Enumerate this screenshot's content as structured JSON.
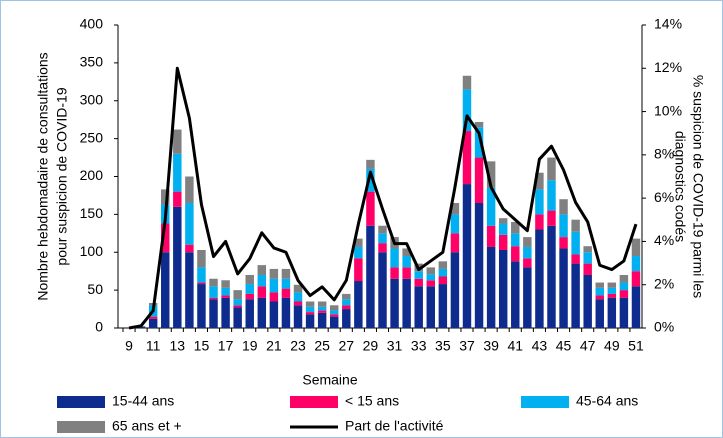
{
  "chart_data": {
    "type": "bar",
    "stacked": true,
    "x_label": "Semaine",
    "y_label": [
      "Nombre  hebdomadaire de consultations",
      "pour suspicion de COVID-19"
    ],
    "y2_label": [
      "% suspicion de COVID-19 parmi les",
      "diagnostics codés"
    ],
    "categories": [
      "9",
      null,
      "11",
      null,
      "13",
      null,
      "15",
      null,
      "17",
      null,
      "19",
      null,
      "21",
      null,
      "23",
      null,
      "25",
      null,
      "27",
      null,
      "29",
      null,
      "31",
      null,
      "33",
      null,
      "35",
      null,
      "37",
      null,
      "39",
      null,
      "41",
      null,
      "43",
      null,
      "45",
      null,
      "47",
      null,
      "49",
      null,
      "51"
    ],
    "ylim": [
      0,
      400
    ],
    "yticks": [
      0,
      50,
      100,
      150,
      200,
      250,
      300,
      350,
      400
    ],
    "y2lim": [
      0,
      14
    ],
    "y2ticks": [
      {
        "value": 0,
        "label": "0%"
      },
      {
        "value": 2,
        "label": "2%"
      },
      {
        "value": 4,
        "label": "4%"
      },
      {
        "value": 6,
        "label": "6%"
      },
      {
        "value": 8,
        "label": "8%"
      },
      {
        "value": 10,
        "label": "10%"
      },
      {
        "value": 12,
        "label": "12%"
      },
      {
        "value": 14,
        "label": "14%"
      }
    ],
    "grid": false,
    "series": [
      {
        "name": "15-44 ans",
        "color": "#0e2c8e",
        "values": [
          0,
          2,
          12,
          100,
          160,
          100,
          58,
          38,
          40,
          27,
          38,
          40,
          35,
          40,
          30,
          18,
          20,
          15,
          25,
          62,
          135,
          100,
          65,
          65,
          55,
          55,
          58,
          100,
          190,
          165,
          107,
          103,
          88,
          80,
          130,
          135,
          105,
          85,
          70,
          38,
          40,
          40,
          55
        ]
      },
      {
        "name": "< 15 ans",
        "color": "#ff0066",
        "values": [
          0,
          0,
          3,
          38,
          20,
          10,
          2,
          2,
          3,
          3,
          7,
          15,
          12,
          12,
          5,
          3,
          3,
          3,
          5,
          30,
          45,
          12,
          15,
          15,
          10,
          8,
          10,
          25,
          70,
          60,
          28,
          20,
          20,
          12,
          20,
          20,
          15,
          12,
          15,
          5,
          5,
          10,
          20
        ]
      },
      {
        "name": "45-64 ans",
        "color": "#00b0f0",
        "values": [
          0,
          0,
          15,
          25,
          50,
          55,
          20,
          15,
          10,
          8,
          13,
          15,
          18,
          13,
          12,
          7,
          5,
          5,
          8,
          15,
          30,
          13,
          25,
          15,
          10,
          8,
          10,
          25,
          55,
          40,
          50,
          15,
          17,
          15,
          33,
          40,
          30,
          30,
          15,
          10,
          8,
          10,
          20
        ]
      },
      {
        "name": "65 ans et +",
        "color": "#808080",
        "values": [
          0,
          0,
          3,
          20,
          32,
          35,
          23,
          10,
          10,
          12,
          12,
          13,
          13,
          13,
          10,
          7,
          7,
          7,
          7,
          11,
          12,
          10,
          15,
          10,
          10,
          9,
          10,
          15,
          18,
          7,
          35,
          7,
          15,
          13,
          22,
          30,
          20,
          16,
          8,
          7,
          7,
          10,
          23
        ]
      },
      {
        "name": "Part de l'activité",
        "color": "#000000",
        "type": "line",
        "axis": "y2",
        "values": [
          0,
          0.1,
          0.8,
          5.0,
          12.0,
          9.7,
          5.7,
          3.3,
          4.0,
          2.5,
          3.2,
          4.4,
          3.7,
          3.5,
          2.2,
          1.5,
          1.9,
          1.3,
          2.2,
          4.8,
          7.2,
          5.5,
          3.9,
          3.9,
          2.7,
          3.1,
          3.5,
          6.5,
          9.8,
          9.0,
          6.5,
          5.5,
          5.0,
          4.5,
          7.8,
          8.4,
          7.3,
          5.8,
          4.9,
          2.9,
          2.7,
          3.1,
          4.8
        ]
      }
    ]
  }
}
